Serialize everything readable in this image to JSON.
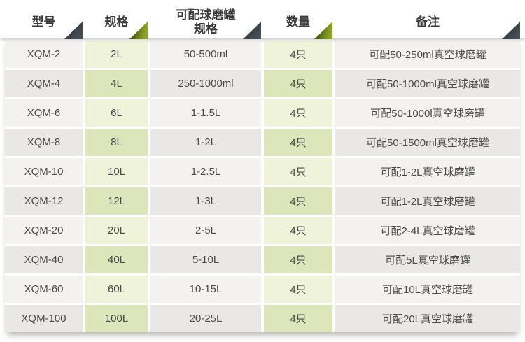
{
  "chart_data": {
    "type": "table",
    "title": "",
    "columns": [
      "型号",
      "规格",
      "可配球磨罐规格",
      "数量",
      "备注"
    ],
    "rows": [
      [
        "XQM-2",
        "2L",
        "50-500ml",
        "4只",
        "可配50-250ml真空球磨罐"
      ],
      [
        "XQM-4",
        "4L",
        "250-1000ml",
        "4只",
        "可配50-1000ml真空球磨罐"
      ],
      [
        "XQM-6",
        "6L",
        "1-1.5L",
        "4只",
        "可配50-1000l真空球磨罐"
      ],
      [
        "XQM-8",
        "8L",
        "1-2L",
        "4只",
        "可配50-1500ml真空球磨罐"
      ],
      [
        "XQM-10",
        "10L",
        "1-2.5L",
        "4只",
        "可配1-2L真空球磨罐"
      ],
      [
        "XQM-12",
        "12L",
        "1-3L",
        "4只",
        "可配1-2L真空球磨罐"
      ],
      [
        "XQM-20",
        "20L",
        "2-5L",
        "4只",
        "可配2-4L真空球磨罐"
      ],
      [
        "XQM-40",
        "40L",
        "5-10L",
        "4只",
        "可配5L真空球磨罐"
      ],
      [
        "XQM-60",
        "60L",
        "10-15L",
        "4只",
        "可配10L真空球磨罐"
      ],
      [
        "XQM-100",
        "100L",
        "20-25L",
        "4只",
        "可配20L真空球磨罐"
      ]
    ]
  },
  "table": {
    "headers": {
      "model": "型号",
      "capacity": "规格",
      "jar_spec": "可配球磨罐\n规格",
      "quantity": "数量",
      "remark": "备注"
    }
  },
  "colors": {
    "tri-dark-a": "#272d32",
    "tri-dark-b": "#4b545b",
    "tri-green-a": "#3e490d",
    "tri-green-b": "#8ba426",
    "row-odd-gray": "#f3f2f0",
    "row-even-gray": "#e9e8e6",
    "row-odd-green": "#eff3da",
    "row-even-green": "#dde6ba"
  }
}
